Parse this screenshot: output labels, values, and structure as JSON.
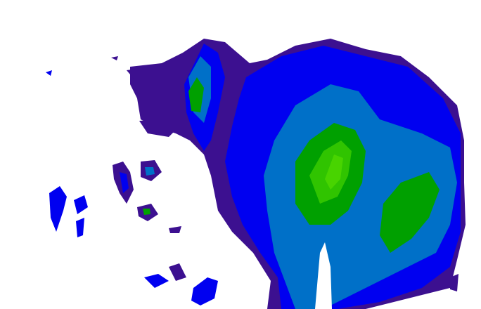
{
  "radar": {
    "colors": {
      "weak": "#3c1090",
      "light": "#0000f0",
      "moderate": "#0070c8",
      "heavy": "#00a000",
      "heavier": "#30c400",
      "core": "#48d400"
    }
  }
}
